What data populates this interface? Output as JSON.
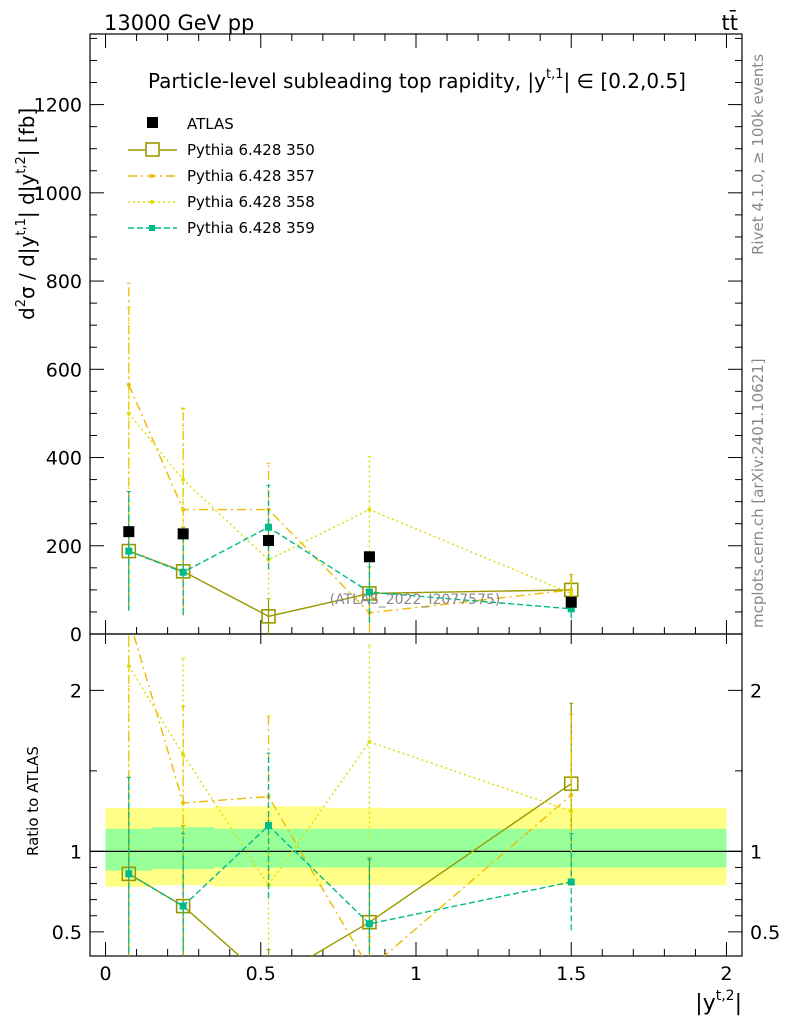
{
  "header": {
    "left": "13000 GeV pp",
    "right": "tt̄"
  },
  "side": {
    "rivet": "Rivet 4.1.0, ≥ 100k events",
    "mcplots": "mcplots.cern.ch [arXiv:2401.10621]"
  },
  "chart_data": {
    "type": "scatter",
    "title": "Particle-level subleading top rapidity, |y^{t,1}| ∈ [0.2,0.5]",
    "title_main": "Particle-level subleading top rapidity, |y",
    "title_sup": "t,1",
    "title_tail": "| ∈ [0.2,0.5]",
    "xlabel": "|y^{t,2}|",
    "xlabel_main": "|y",
    "xlabel_sup": "t,2",
    "xlabel_tail": "|",
    "ylabel": "d²σ / d|y^{t,1}| d|y^{t,2}| [fb]",
    "ylabel_html": {
      "a": "d",
      "a_sup": "2",
      "b": "σ / d|y",
      "b_sup": "t,1",
      "c": "| d|y",
      "c_sup": "t,2",
      "d": "| [fb]"
    },
    "ratio_ylabel": "Ratio to ATLAS",
    "watermark": "(ATLAS_2022_I2077575)",
    "xlim": [
      -0.05,
      2.05
    ],
    "ylim": [
      0,
      1360
    ],
    "ratio_ylim": [
      0.35,
      2.35
    ],
    "x_ticks": [
      0,
      0.5,
      1,
      1.5,
      2
    ],
    "x_tick_labels": [
      "0",
      "0.5",
      "1",
      "1.5",
      "2"
    ],
    "y_ticks": [
      0,
      200,
      400,
      600,
      800,
      1000,
      1200
    ],
    "y_tick_labels": [
      "0",
      "200",
      "400",
      "600",
      "800",
      "1000",
      "1200"
    ],
    "ratio_ticks": [
      0.5,
      1,
      2
    ],
    "ratio_tick_labels": [
      "0.5",
      "1",
      "2"
    ],
    "bin_edges": [
      0,
      0.15,
      0.35,
      0.7,
      1.0,
      2.0
    ],
    "band": {
      "inner": [
        [
          0.88,
          1.14
        ],
        [
          0.89,
          1.15
        ],
        [
          0.9,
          1.14
        ],
        [
          0.9,
          1.14
        ],
        [
          0.9,
          1.14
        ]
      ],
      "outer": [
        [
          0.78,
          1.27
        ],
        [
          0.79,
          1.27
        ],
        [
          0.78,
          1.28
        ],
        [
          0.79,
          1.27
        ],
        [
          0.79,
          1.27
        ]
      ]
    },
    "data": {
      "name": "ATLAS",
      "x": [
        0.075,
        0.25,
        0.525,
        0.85,
        1.5
      ],
      "y": [
        232,
        227,
        212,
        175,
        72
      ],
      "err": [
        12,
        12,
        14,
        12,
        8
      ]
    },
    "series": [
      {
        "name": "Pythia 6.428 350",
        "color": "#999900",
        "dash": "",
        "marker": "open-square",
        "x": [
          0.075,
          0.25,
          0.525,
          0.85,
          1.5
        ],
        "y": [
          188,
          142,
          40,
          92,
          100
        ],
        "err": [
          135,
          100,
          40,
          60,
          35
        ],
        "ratio": [
          0.86,
          0.66,
          0.19,
          0.56,
          1.42
        ],
        "ratio_err": [
          0.6,
          0.5,
          0.2,
          0.4,
          0.5
        ]
      },
      {
        "name": "Pythia 6.428 357",
        "color": "#eebb00",
        "dash": "9,4,2,4",
        "marker": "dot",
        "x": [
          0.075,
          0.25,
          0.525,
          0.85,
          1.5
        ],
        "y": [
          565,
          282,
          282,
          48,
          100
        ],
        "err": [
          230,
          230,
          105,
          45,
          35
        ],
        "ratio": [
          2.45,
          1.3,
          1.34,
          0.27,
          1.35
        ],
        "ratio_err": [
          1.0,
          0.6,
          0.5,
          0.2,
          0.5
        ]
      },
      {
        "name": "Pythia 6.428 358",
        "color": "#dddd00",
        "dash": "2,3",
        "marker": "dot",
        "x": [
          0.075,
          0.25,
          0.525,
          0.85,
          1.5
        ],
        "y": [
          500,
          350,
          168,
          282,
          92
        ],
        "err": [
          240,
          160,
          90,
          120,
          30
        ],
        "ratio": [
          2.15,
          1.6,
          0.79,
          1.68,
          1.25
        ],
        "ratio_err": [
          1.0,
          0.6,
          0.4,
          0.6,
          0.45
        ]
      },
      {
        "name": "Pythia 6.428 359",
        "color": "#00bb88",
        "dash": "6,3",
        "marker": "filled-square",
        "x": [
          0.075,
          0.25,
          0.525,
          0.85,
          1.5
        ],
        "y": [
          188,
          140,
          242,
          95,
          57
        ],
        "err": [
          135,
          95,
          95,
          70,
          22
        ],
        "ratio": [
          0.86,
          0.66,
          1.16,
          0.55,
          0.81
        ],
        "ratio_err": [
          0.6,
          0.45,
          0.45,
          0.4,
          0.3
        ]
      }
    ]
  }
}
